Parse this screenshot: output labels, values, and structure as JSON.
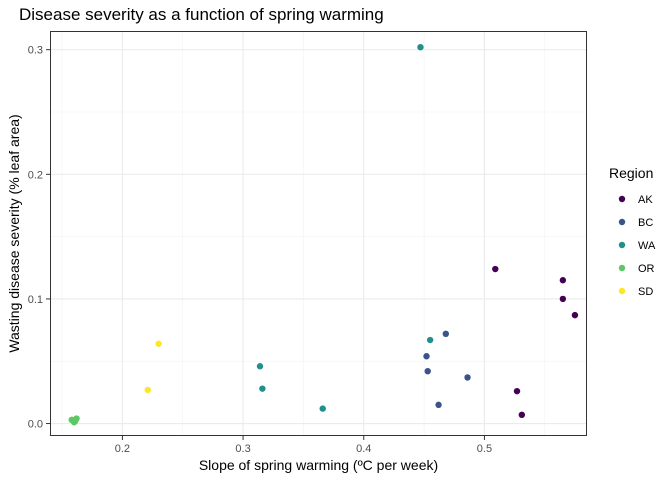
{
  "chart_data": {
    "type": "scatter",
    "title": "Disease severity as a function of spring warming",
    "xlabel": "Slope of spring warming (ºC per week)",
    "ylabel": "Wasting disease severity (% leaf area)",
    "xlim": [
      0.14,
      0.585
    ],
    "ylim": [
      -0.01,
      0.315
    ],
    "xticks": [
      0.2,
      0.3,
      0.4,
      0.5
    ],
    "xtick_labels": [
      "0.2",
      "0.3",
      "0.4",
      "0.5"
    ],
    "yticks": [
      0.0,
      0.1,
      0.2,
      0.3
    ],
    "ytick_labels": [
      "0.0",
      "0.1",
      "0.2",
      "0.3"
    ],
    "grid": true,
    "legend": {
      "title": "Region",
      "placement": "right"
    },
    "series": [
      {
        "name": "AK",
        "color": "#440154",
        "points": [
          [
            0.509,
            0.124
          ],
          [
            0.565,
            0.115
          ],
          [
            0.565,
            0.1
          ],
          [
            0.575,
            0.087
          ],
          [
            0.527,
            0.026
          ],
          [
            0.531,
            0.007
          ]
        ]
      },
      {
        "name": "BC",
        "color": "#3B528B",
        "points": [
          [
            0.468,
            0.072
          ],
          [
            0.452,
            0.054
          ],
          [
            0.453,
            0.042
          ],
          [
            0.486,
            0.037
          ],
          [
            0.462,
            0.015
          ]
        ]
      },
      {
        "name": "WA",
        "color": "#21908C",
        "points": [
          [
            0.447,
            0.302
          ],
          [
            0.455,
            0.067
          ],
          [
            0.314,
            0.046
          ],
          [
            0.316,
            0.028
          ],
          [
            0.366,
            0.012
          ]
        ]
      },
      {
        "name": "OR",
        "color": "#5DC863",
        "points": [
          [
            0.158,
            0.003
          ],
          [
            0.161,
            0.002
          ],
          [
            0.162,
            0.004
          ],
          [
            0.16,
            0.001
          ]
        ]
      },
      {
        "name": "SD",
        "color": "#FDE725",
        "points": [
          [
            0.23,
            0.064
          ],
          [
            0.221,
            0.027
          ]
        ]
      }
    ]
  }
}
